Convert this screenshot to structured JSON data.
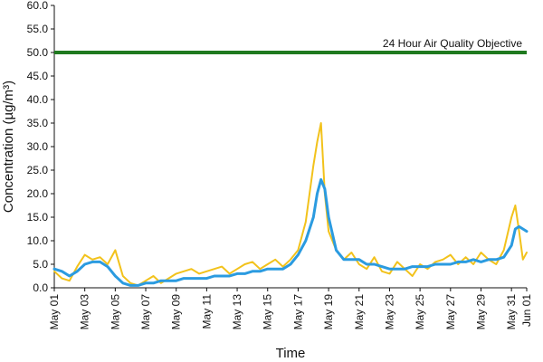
{
  "chart_data": {
    "type": "line",
    "title": "",
    "xlabel": "Time",
    "ylabel": "Concentration (µg/m³)",
    "ylim": [
      0,
      60
    ],
    "y_ticks": [
      "0.0",
      "5.0",
      "10.0",
      "15.0",
      "20.0",
      "25.0",
      "30.0",
      "35.0",
      "40.0",
      "45.0",
      "50.0",
      "55.0",
      "60.0"
    ],
    "x_range": [
      "2023-05-01",
      "2023-06-01"
    ],
    "x_ticks": [
      {
        "date": "2023-05-01",
        "label": "May 01"
      },
      {
        "date": "2023-05-03",
        "label": "May 03"
      },
      {
        "date": "2023-05-05",
        "label": "May 05"
      },
      {
        "date": "2023-05-07",
        "label": "May 07"
      },
      {
        "date": "2023-05-09",
        "label": "May 09"
      },
      {
        "date": "2023-05-11",
        "label": "May 11"
      },
      {
        "date": "2023-05-13",
        "label": "May 13"
      },
      {
        "date": "2023-05-15",
        "label": "May 15"
      },
      {
        "date": "2023-05-17",
        "label": "May 17"
      },
      {
        "date": "2023-05-19",
        "label": "May 19"
      },
      {
        "date": "2023-05-21",
        "label": "May 21"
      },
      {
        "date": "2023-05-23",
        "label": "May 23"
      },
      {
        "date": "2023-05-25",
        "label": "May 25"
      },
      {
        "date": "2023-05-27",
        "label": "May 27"
      },
      {
        "date": "2023-05-29",
        "label": "May 29"
      },
      {
        "date": "2023-05-31",
        "label": "May 31"
      },
      {
        "date": "2023-06-01",
        "label": "Jun 01"
      }
    ],
    "grid": false,
    "legend": "none",
    "objective": {
      "label": "24 Hour Air Quality Objective",
      "value": 50.0,
      "color": "#1f7a1f"
    },
    "series": [
      {
        "color": "#f2c21b",
        "x": [
          "2023-05-01",
          "2023-05-01T12:00",
          "2023-05-02",
          "2023-05-02T12:00",
          "2023-05-03",
          "2023-05-03T12:00",
          "2023-05-04",
          "2023-05-04T12:00",
          "2023-05-05",
          "2023-05-05T12:00",
          "2023-05-06",
          "2023-05-06T12:00",
          "2023-05-07",
          "2023-05-07T12:00",
          "2023-05-08",
          "2023-05-08T12:00",
          "2023-05-09",
          "2023-05-09T12:00",
          "2023-05-10",
          "2023-05-10T12:00",
          "2023-05-11",
          "2023-05-11T12:00",
          "2023-05-12",
          "2023-05-12T12:00",
          "2023-05-13",
          "2023-05-13T12:00",
          "2023-05-14",
          "2023-05-14T12:00",
          "2023-05-15",
          "2023-05-15T12:00",
          "2023-05-16",
          "2023-05-16T12:00",
          "2023-05-17",
          "2023-05-17T12:00",
          "2023-05-18",
          "2023-05-18T06:00",
          "2023-05-18T12:00",
          "2023-05-18T18:00",
          "2023-05-19",
          "2023-05-19T12:00",
          "2023-05-20",
          "2023-05-20T12:00",
          "2023-05-21",
          "2023-05-21T12:00",
          "2023-05-22",
          "2023-05-22T12:00",
          "2023-05-23",
          "2023-05-23T12:00",
          "2023-05-24",
          "2023-05-24T12:00",
          "2023-05-25",
          "2023-05-25T12:00",
          "2023-05-26",
          "2023-05-26T12:00",
          "2023-05-27",
          "2023-05-27T12:00",
          "2023-05-28",
          "2023-05-28T12:00",
          "2023-05-29",
          "2023-05-29T12:00",
          "2023-05-30",
          "2023-05-30T12:00",
          "2023-05-31",
          "2023-05-31T06:00",
          "2023-05-31T12:00",
          "2023-05-31T18:00",
          "2023-06-01"
        ],
        "values": [
          3.5,
          2.0,
          1.5,
          4.5,
          7.0,
          6.0,
          6.5,
          5.0,
          8.0,
          2.5,
          1.0,
          0.5,
          1.5,
          2.5,
          1.0,
          2.0,
          3.0,
          3.5,
          4.0,
          3.0,
          3.5,
          4.0,
          4.5,
          3.0,
          4.0,
          5.0,
          5.5,
          4.0,
          5.0,
          6.0,
          4.5,
          6.0,
          8.0,
          14.0,
          26.0,
          31.0,
          35.0,
          20.0,
          12.0,
          8.0,
          6.0,
          7.5,
          5.0,
          4.0,
          6.5,
          3.5,
          3.0,
          5.5,
          4.0,
          2.5,
          5.0,
          4.0,
          5.5,
          6.0,
          7.0,
          5.0,
          6.5,
          5.0,
          7.5,
          6.0,
          5.0,
          8.0,
          15.0,
          17.5,
          12.0,
          6.0,
          7.5
        ]
      },
      {
        "color": "#2b9be0",
        "x": [
          "2023-05-01",
          "2023-05-01T12:00",
          "2023-05-02",
          "2023-05-02T12:00",
          "2023-05-03",
          "2023-05-03T12:00",
          "2023-05-04",
          "2023-05-04T12:00",
          "2023-05-05",
          "2023-05-05T12:00",
          "2023-05-06",
          "2023-05-06T12:00",
          "2023-05-07",
          "2023-05-07T12:00",
          "2023-05-08",
          "2023-05-08T12:00",
          "2023-05-09",
          "2023-05-09T12:00",
          "2023-05-10",
          "2023-05-10T12:00",
          "2023-05-11",
          "2023-05-11T12:00",
          "2023-05-12",
          "2023-05-12T12:00",
          "2023-05-13",
          "2023-05-13T12:00",
          "2023-05-14",
          "2023-05-14T12:00",
          "2023-05-15",
          "2023-05-15T12:00",
          "2023-05-16",
          "2023-05-16T12:00",
          "2023-05-17",
          "2023-05-17T12:00",
          "2023-05-18",
          "2023-05-18T06:00",
          "2023-05-18T12:00",
          "2023-05-18T18:00",
          "2023-05-19",
          "2023-05-19T12:00",
          "2023-05-20",
          "2023-05-20T12:00",
          "2023-05-21",
          "2023-05-21T12:00",
          "2023-05-22",
          "2023-05-22T12:00",
          "2023-05-23",
          "2023-05-23T12:00",
          "2023-05-24",
          "2023-05-24T12:00",
          "2023-05-25",
          "2023-05-25T12:00",
          "2023-05-26",
          "2023-05-26T12:00",
          "2023-05-27",
          "2023-05-27T12:00",
          "2023-05-28",
          "2023-05-28T12:00",
          "2023-05-29",
          "2023-05-29T12:00",
          "2023-05-30",
          "2023-05-30T12:00",
          "2023-05-31",
          "2023-05-31T06:00",
          "2023-05-31T12:00",
          "2023-05-31T18:00",
          "2023-06-01"
        ],
        "values": [
          4.0,
          3.5,
          2.5,
          3.5,
          5.0,
          5.5,
          5.5,
          4.5,
          2.5,
          1.0,
          0.5,
          0.5,
          1.0,
          1.0,
          1.5,
          1.5,
          1.5,
          2.0,
          2.0,
          2.0,
          2.0,
          2.5,
          2.5,
          2.5,
          3.0,
          3.0,
          3.5,
          3.5,
          4.0,
          4.0,
          4.0,
          5.0,
          7.0,
          10.0,
          15.0,
          20.0,
          23.0,
          21.0,
          15.0,
          8.0,
          6.0,
          6.0,
          6.0,
          5.0,
          5.0,
          4.5,
          4.0,
          4.0,
          4.0,
          4.5,
          4.5,
          4.5,
          5.0,
          5.0,
          5.0,
          5.5,
          5.5,
          6.0,
          5.5,
          6.0,
          6.0,
          6.5,
          9.0,
          12.5,
          13.0,
          12.5,
          12.0
        ]
      }
    ]
  }
}
